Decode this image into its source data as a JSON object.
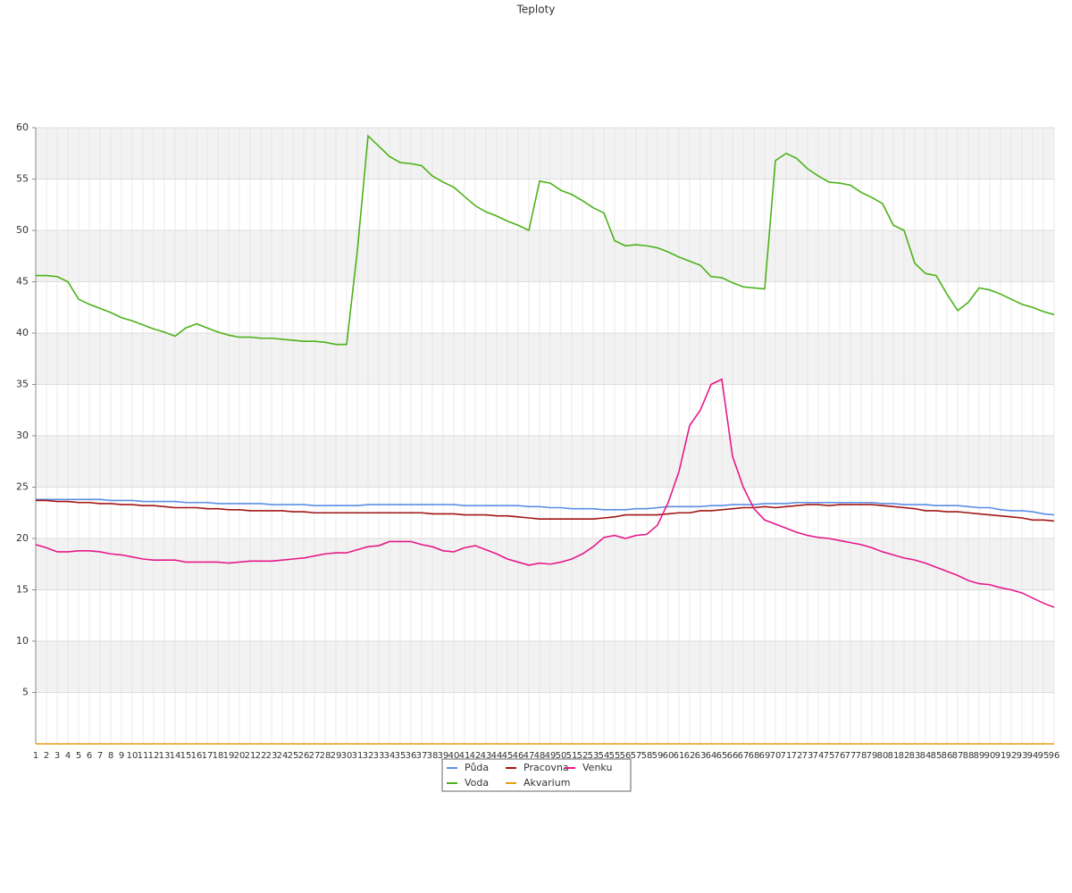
{
  "chart_data": {
    "type": "line",
    "title": "Teploty",
    "categories": [
      1,
      2,
      3,
      4,
      5,
      6,
      7,
      8,
      9,
      10,
      11,
      12,
      13,
      14,
      15,
      16,
      17,
      18,
      19,
      20,
      21,
      22,
      23,
      24,
      25,
      26,
      27,
      28,
      29,
      30,
      31,
      32,
      33,
      34,
      35,
      36,
      37,
      38,
      39,
      40,
      41,
      42,
      43,
      44,
      45,
      46,
      47,
      48,
      49,
      50,
      51,
      52,
      53,
      54,
      55,
      56,
      57,
      58,
      59,
      60,
      61,
      62,
      63,
      64,
      65,
      66,
      67,
      68,
      69,
      70,
      71,
      72,
      73,
      74,
      75,
      76,
      77,
      78,
      79,
      80,
      81,
      82,
      83,
      84,
      85,
      86,
      87,
      88,
      89,
      90,
      91,
      92,
      93,
      94,
      95,
      96
    ],
    "ylim": [
      0,
      60
    ],
    "yticks": [
      5,
      10,
      15,
      20,
      25,
      30,
      35,
      40,
      45,
      50,
      55,
      60
    ],
    "grid": true,
    "series": [
      {
        "name": "Půda",
        "color": "#5b8ee6",
        "values": [
          23.8,
          23.8,
          23.8,
          23.8,
          23.8,
          23.8,
          23.8,
          23.7,
          23.7,
          23.7,
          23.6,
          23.6,
          23.6,
          23.6,
          23.5,
          23.5,
          23.5,
          23.4,
          23.4,
          23.4,
          23.4,
          23.4,
          23.3,
          23.3,
          23.3,
          23.3,
          23.2,
          23.2,
          23.2,
          23.2,
          23.2,
          23.3,
          23.3,
          23.3,
          23.3,
          23.3,
          23.3,
          23.3,
          23.3,
          23.3,
          23.2,
          23.2,
          23.2,
          23.2,
          23.2,
          23.2,
          23.1,
          23.1,
          23.0,
          23.0,
          22.9,
          22.9,
          22.9,
          22.8,
          22.8,
          22.8,
          22.9,
          22.9,
          23.0,
          23.1,
          23.1,
          23.1,
          23.1,
          23.2,
          23.2,
          23.3,
          23.3,
          23.3,
          23.4,
          23.4,
          23.4,
          23.5,
          23.5,
          23.5,
          23.5,
          23.5,
          23.5,
          23.5,
          23.5,
          23.4,
          23.4,
          23.3,
          23.3,
          23.3,
          23.2,
          23.2,
          23.2,
          23.1,
          23.0,
          23.0,
          22.8,
          22.7,
          22.7,
          22.6,
          22.4,
          22.3
        ]
      },
      {
        "name": "Pracovna",
        "color": "#a31515",
        "values": [
          23.7,
          23.7,
          23.6,
          23.6,
          23.5,
          23.5,
          23.4,
          23.4,
          23.3,
          23.3,
          23.2,
          23.2,
          23.1,
          23.0,
          23.0,
          23.0,
          22.9,
          22.9,
          22.8,
          22.8,
          22.7,
          22.7,
          22.7,
          22.7,
          22.6,
          22.6,
          22.5,
          22.5,
          22.5,
          22.5,
          22.5,
          22.5,
          22.5,
          22.5,
          22.5,
          22.5,
          22.5,
          22.4,
          22.4,
          22.4,
          22.3,
          22.3,
          22.3,
          22.2,
          22.2,
          22.1,
          22.0,
          21.9,
          21.9,
          21.9,
          21.9,
          21.9,
          21.9,
          22.0,
          22.1,
          22.3,
          22.3,
          22.3,
          22.3,
          22.4,
          22.5,
          22.5,
          22.7,
          22.7,
          22.8,
          22.9,
          23.0,
          23.0,
          23.1,
          23.0,
          23.1,
          23.2,
          23.3,
          23.3,
          23.2,
          23.3,
          23.3,
          23.3,
          23.3,
          23.2,
          23.1,
          23.0,
          22.9,
          22.7,
          22.7,
          22.6,
          22.6,
          22.5,
          22.4,
          22.3,
          22.2,
          22.1,
          22.0,
          21.8,
          21.8,
          21.7
        ]
      },
      {
        "name": "Venku",
        "color": "#e6198a",
        "values": [
          19.4,
          19.1,
          18.7,
          18.7,
          18.8,
          18.8,
          18.7,
          18.5,
          18.4,
          18.2,
          18.0,
          17.9,
          17.9,
          17.9,
          17.7,
          17.7,
          17.7,
          17.7,
          17.6,
          17.7,
          17.8,
          17.8,
          17.8,
          17.9,
          18.0,
          18.1,
          18.3,
          18.5,
          18.6,
          18.6,
          18.9,
          19.2,
          19.3,
          19.7,
          19.7,
          19.7,
          19.4,
          19.2,
          18.8,
          18.7,
          19.1,
          19.3,
          18.9,
          18.5,
          18.0,
          17.7,
          17.4,
          17.6,
          17.5,
          17.7,
          18.0,
          18.5,
          19.2,
          20.1,
          20.3,
          20.0,
          20.3,
          20.4,
          21.3,
          23.5,
          26.5,
          31.0,
          32.5,
          35.0,
          35.5,
          28.0,
          25.0,
          22.9,
          21.8,
          21.4,
          21.0,
          20.6,
          20.3,
          20.1,
          20.0,
          19.8,
          19.6,
          19.4,
          19.1,
          18.7,
          18.4,
          18.1,
          17.9,
          17.6,
          17.2,
          16.8,
          16.4,
          15.9,
          15.6,
          15.5,
          15.2,
          15.0,
          14.7,
          14.2,
          13.7,
          13.3
        ]
      },
      {
        "name": "Voda",
        "color": "#4cb21a",
        "values": [
          45.6,
          45.6,
          45.5,
          45.0,
          43.3,
          42.8,
          42.4,
          42.0,
          41.5,
          41.2,
          40.8,
          40.4,
          40.1,
          39.7,
          40.5,
          40.9,
          40.5,
          40.1,
          39.8,
          39.6,
          39.6,
          39.5,
          39.5,
          39.4,
          39.3,
          39.2,
          39.2,
          39.1,
          38.9,
          38.9,
          48.0,
          59.2,
          58.2,
          57.2,
          56.6,
          56.5,
          56.3,
          55.3,
          54.7,
          54.2,
          53.3,
          52.4,
          51.8,
          51.4,
          50.9,
          50.5,
          50.0,
          54.8,
          54.6,
          53.9,
          53.5,
          52.9,
          52.2,
          51.7,
          49.0,
          48.5,
          48.6,
          48.5,
          48.3,
          47.9,
          47.4,
          47.0,
          46.6,
          45.5,
          45.4,
          44.9,
          44.5,
          44.4,
          44.3,
          56.8,
          57.5,
          57.0,
          56.0,
          55.3,
          54.7,
          54.6,
          54.4,
          53.7,
          53.2,
          52.6,
          50.5,
          50.0,
          46.8,
          45.8,
          45.6,
          43.8,
          42.2,
          43.0,
          44.4,
          44.2,
          43.8,
          43.3,
          42.8,
          42.5,
          42.1,
          41.8
        ]
      },
      {
        "name": "Akvarium",
        "color": "#e6a010",
        "values": [
          0,
          0,
          0,
          0,
          0,
          0,
          0,
          0,
          0,
          0,
          0,
          0,
          0,
          0,
          0,
          0,
          0,
          0,
          0,
          0,
          0,
          0,
          0,
          0,
          0,
          0,
          0,
          0,
          0,
          0,
          0,
          0,
          0,
          0,
          0,
          0,
          0,
          0,
          0,
          0,
          0,
          0,
          0,
          0,
          0,
          0,
          0,
          0,
          0,
          0,
          0,
          0,
          0,
          0,
          0,
          0,
          0,
          0,
          0,
          0,
          0,
          0,
          0,
          0,
          0,
          0,
          0,
          0,
          0,
          0,
          0,
          0,
          0,
          0,
          0,
          0,
          0,
          0,
          0,
          0,
          0,
          0,
          0,
          0,
          0,
          0,
          0,
          0,
          0,
          0,
          0,
          0,
          0,
          0,
          0,
          0
        ]
      }
    ]
  }
}
